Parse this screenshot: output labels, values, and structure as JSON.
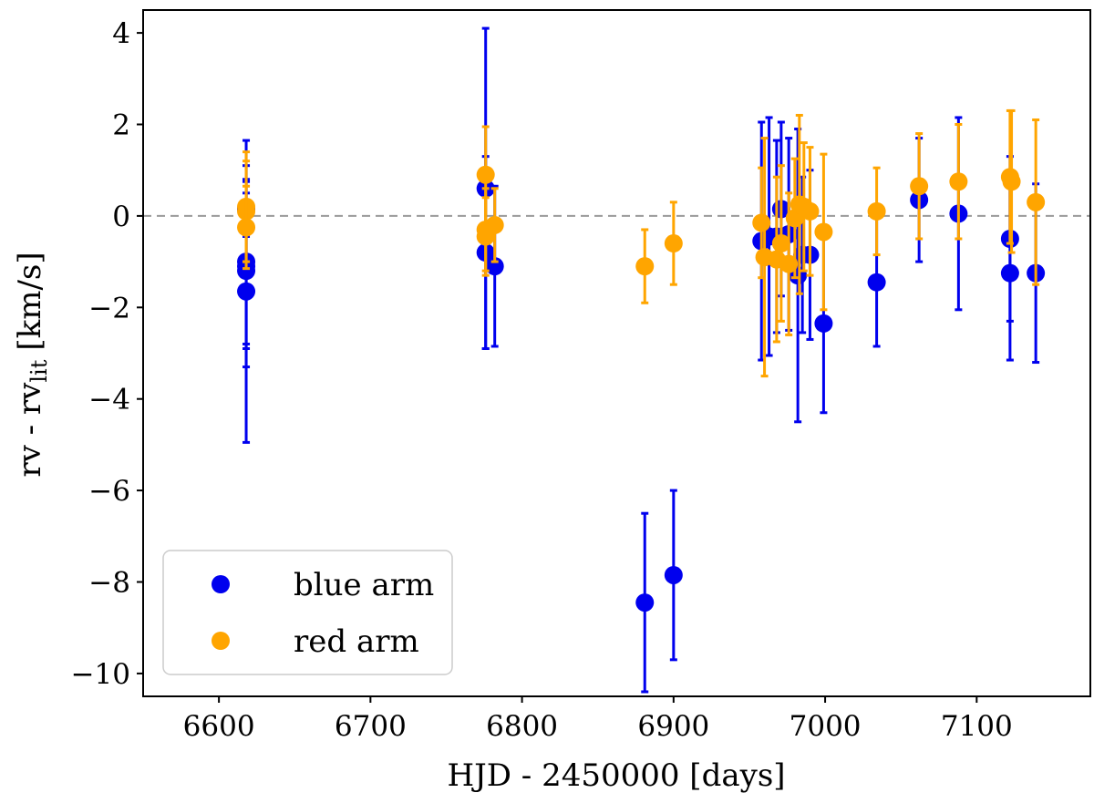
{
  "chart_data": {
    "type": "scatter",
    "title": "",
    "xlabel": "HJD - 2450000 [days]",
    "ylabel_main": "rv - rv",
    "ylabel_sub": "lit",
    "ylabel_unit": "[km/s]",
    "xlim": [
      6550,
      7175
    ],
    "ylim": [
      -10.5,
      4.5
    ],
    "xticks": [
      6600,
      6700,
      6800,
      6900,
      7000,
      7100
    ],
    "yticks": [
      4,
      2,
      0,
      -2,
      -4,
      -6,
      -8,
      -10
    ],
    "xtick_labels": [
      "6600",
      "6700",
      "6800",
      "6900",
      "7000",
      "7100"
    ],
    "ytick_labels": [
      "4",
      "2",
      "0",
      "−2",
      "−4",
      "−6",
      "−8",
      "−10"
    ],
    "reference_line": {
      "y": 0,
      "style": "dashed",
      "color": "#999999"
    },
    "legend": {
      "position": "lower-left",
      "entries": [
        "blue arm",
        "red arm"
      ]
    },
    "series": [
      {
        "name": "blue arm",
        "color": "#0000ee",
        "points": [
          {
            "x": 6618,
            "y": -1.0,
            "err": 1.8
          },
          {
            "x": 6618,
            "y": -1.1,
            "err": 2.2
          },
          {
            "x": 6618,
            "y": -1.2,
            "err": 1.7
          },
          {
            "x": 6618,
            "y": -1.65,
            "err": 3.3
          },
          {
            "x": 6618,
            "y": 0.15,
            "err": 0.6
          },
          {
            "x": 6776,
            "y": 0.6,
            "err": 3.5
          },
          {
            "x": 6776,
            "y": -0.8,
            "err": 2.1
          },
          {
            "x": 6782,
            "y": -1.1,
            "err": 1.75
          },
          {
            "x": 6881,
            "y": -8.45,
            "err": 1.95
          },
          {
            "x": 6900,
            "y": -7.85,
            "err": 1.85
          },
          {
            "x": 6958,
            "y": -0.55,
            "err": 2.6
          },
          {
            "x": 6963,
            "y": -0.45,
            "err": 2.6
          },
          {
            "x": 6968,
            "y": -0.45,
            "err": 2.1
          },
          {
            "x": 6971,
            "y": 0.15,
            "err": 1.9
          },
          {
            "x": 6976,
            "y": -0.4,
            "err": 2.1
          },
          {
            "x": 6982,
            "y": -1.3,
            "err": 3.2
          },
          {
            "x": 6985,
            "y": -0.85,
            "err": 1.7
          },
          {
            "x": 6990,
            "y": -0.85,
            "err": 1.85
          },
          {
            "x": 6999,
            "y": -2.35,
            "err": 1.95
          },
          {
            "x": 7034,
            "y": -1.45,
            "err": 1.4
          },
          {
            "x": 7062,
            "y": 0.35,
            "err": 1.35
          },
          {
            "x": 7088,
            "y": 0.05,
            "err": 2.1
          },
          {
            "x": 7122,
            "y": -0.5,
            "err": 1.8
          },
          {
            "x": 7122,
            "y": -1.25,
            "err": 1.9
          },
          {
            "x": 7139,
            "y": -1.25,
            "err": 1.95
          }
        ]
      },
      {
        "name": "red arm",
        "color": "#ffa500",
        "points": [
          {
            "x": 6618,
            "y": 0.2,
            "err": 1.2
          },
          {
            "x": 6618,
            "y": 0.1,
            "err": 1.1
          },
          {
            "x": 6618,
            "y": -0.25,
            "err": 0.9
          },
          {
            "x": 6776,
            "y": 0.9,
            "err": 1.05
          },
          {
            "x": 6776,
            "y": -0.3,
            "err": 0.9
          },
          {
            "x": 6776,
            "y": -0.45,
            "err": 0.85
          },
          {
            "x": 6782,
            "y": -0.2,
            "err": 0.8
          },
          {
            "x": 6881,
            "y": -1.1,
            "err": 0.8
          },
          {
            "x": 6900,
            "y": -0.6,
            "err": 0.9
          },
          {
            "x": 6958,
            "y": -0.15,
            "err": 1.2
          },
          {
            "x": 6960,
            "y": -0.9,
            "err": 2.6
          },
          {
            "x": 6968,
            "y": -0.95,
            "err": 1.8
          },
          {
            "x": 6971,
            "y": -0.6,
            "err": 1.7
          },
          {
            "x": 6976,
            "y": -1.05,
            "err": 1.55
          },
          {
            "x": 6980,
            "y": -0.05,
            "err": 1.3
          },
          {
            "x": 6983,
            "y": 0.25,
            "err": 1.95
          },
          {
            "x": 6986,
            "y": 0.2,
            "err": 1.4
          },
          {
            "x": 6990,
            "y": 0.1,
            "err": 1.4
          },
          {
            "x": 6999,
            "y": -0.35,
            "err": 1.7
          },
          {
            "x": 7034,
            "y": 0.1,
            "err": 0.95
          },
          {
            "x": 7062,
            "y": 0.65,
            "err": 1.15
          },
          {
            "x": 7088,
            "y": 0.75,
            "err": 1.25
          },
          {
            "x": 7122,
            "y": 0.85,
            "err": 1.45
          },
          {
            "x": 7123,
            "y": 0.75,
            "err": 1.55
          },
          {
            "x": 7139,
            "y": 0.3,
            "err": 1.8
          }
        ]
      }
    ]
  }
}
